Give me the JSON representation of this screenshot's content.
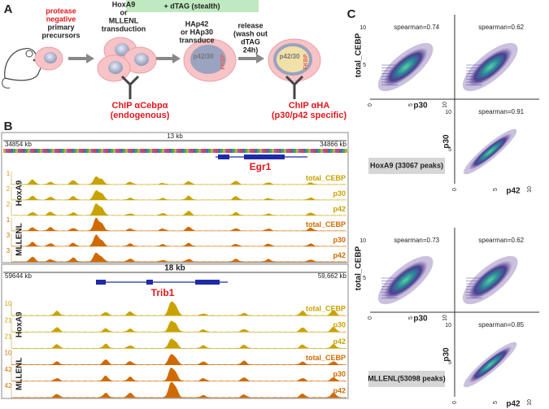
{
  "panel_a": {
    "label": "A",
    "banner": "+ dTAG (stealth)",
    "start_lines": [
      "protease",
      "negative",
      "primary",
      "precursors"
    ],
    "transduction_lines": [
      "HoxA9",
      "or",
      "MLLENL",
      "transduction"
    ],
    "ha_lines": [
      "HAp42",
      "or HAp30",
      "transduce"
    ],
    "release_lines": [
      "release",
      "(wash out",
      "dTAG",
      "24h)"
    ],
    "cell_labels": [
      "p42/30",
      "FKBP"
    ],
    "chip1": [
      "ChIP αCebpα",
      "(endogenous)"
    ],
    "chip2": [
      "ChIP αHA",
      "(p30/p42 specific)"
    ]
  },
  "panel_b": {
    "label": "B",
    "loci": [
      {
        "start": "34854 kb",
        "span": "13 kb",
        "end": "34866 kb",
        "gene": "Egr1",
        "scales": [
          "1",
          "2",
          "2",
          "1",
          "3",
          "3"
        ]
      },
      {
        "start": "59644 kb",
        "span": "18 kb",
        "end": "59,662 kb",
        "gene": "Trib1",
        "scales": [
          "10",
          "21",
          "21",
          "10",
          "42",
          "42"
        ]
      }
    ],
    "track_names": [
      "total_CEBP",
      "p30",
      "p42",
      "total_CEBP",
      "p30",
      "p42"
    ],
    "groups": [
      "HoxA9",
      "MLLENL"
    ]
  },
  "panel_c": {
    "label": "C",
    "axis_labels": {
      "y": "total_CEBP",
      "x": "p30",
      "x2": "p42",
      "y2": "p30"
    },
    "ticks": [
      "0",
      "5",
      "10"
    ],
    "blocks": [
      {
        "spearman": [
          "spearman=0.74",
          "spearman=0.62",
          "spearman=0.91"
        ],
        "caption": "HoxA9 (33067 peaks)"
      },
      {
        "spearman": [
          "spearman=0.73",
          "spearman=0.62",
          "spearman=0.85"
        ],
        "caption": "MLLENL(53098 peaks)"
      }
    ]
  }
}
